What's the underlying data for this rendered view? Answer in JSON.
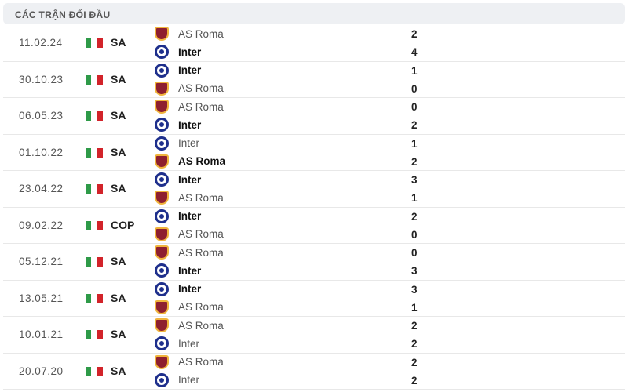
{
  "header": {
    "title": "CÁC TRẬN ĐỐI ĐẦU"
  },
  "colors": {
    "flag": [
      "#2e9a48",
      "#ffffff",
      "#d2232a"
    ]
  },
  "matches": [
    {
      "date": "11.02.24",
      "comp": "SA",
      "home": {
        "name": "AS Roma",
        "logo": "roma-crest-icon",
        "score": "2",
        "win": false
      },
      "away": {
        "name": "Inter",
        "logo": "inter-crest-icon",
        "score": "4",
        "win": true
      }
    },
    {
      "date": "30.10.23",
      "comp": "SA",
      "home": {
        "name": "Inter",
        "logo": "inter-crest-icon",
        "score": "1",
        "win": true
      },
      "away": {
        "name": "AS Roma",
        "logo": "roma-crest-icon",
        "score": "0",
        "win": false
      }
    },
    {
      "date": "06.05.23",
      "comp": "SA",
      "home": {
        "name": "AS Roma",
        "logo": "roma-crest-icon",
        "score": "0",
        "win": false
      },
      "away": {
        "name": "Inter",
        "logo": "inter-crest-icon",
        "score": "2",
        "win": true
      }
    },
    {
      "date": "01.10.22",
      "comp": "SA",
      "home": {
        "name": "Inter",
        "logo": "inter-crest-icon",
        "score": "1",
        "win": false
      },
      "away": {
        "name": "AS Roma",
        "logo": "roma-crest-icon",
        "score": "2",
        "win": true
      }
    },
    {
      "date": "23.04.22",
      "comp": "SA",
      "home": {
        "name": "Inter",
        "logo": "inter-crest-icon",
        "score": "3",
        "win": true
      },
      "away": {
        "name": "AS Roma",
        "logo": "roma-crest-icon",
        "score": "1",
        "win": false
      }
    },
    {
      "date": "09.02.22",
      "comp": "COP",
      "home": {
        "name": "Inter",
        "logo": "inter-crest-icon",
        "score": "2",
        "win": true
      },
      "away": {
        "name": "AS Roma",
        "logo": "roma-crest-icon",
        "score": "0",
        "win": false
      }
    },
    {
      "date": "05.12.21",
      "comp": "SA",
      "home": {
        "name": "AS Roma",
        "logo": "roma-crest-icon",
        "score": "0",
        "win": false
      },
      "away": {
        "name": "Inter",
        "logo": "inter-crest-icon",
        "score": "3",
        "win": true
      }
    },
    {
      "date": "13.05.21",
      "comp": "SA",
      "home": {
        "name": "Inter",
        "logo": "inter-crest-icon",
        "score": "3",
        "win": true
      },
      "away": {
        "name": "AS Roma",
        "logo": "roma-crest-icon",
        "score": "1",
        "win": false
      }
    },
    {
      "date": "10.01.21",
      "comp": "SA",
      "home": {
        "name": "AS Roma",
        "logo": "roma-crest-icon",
        "score": "2",
        "win": false
      },
      "away": {
        "name": "Inter",
        "logo": "inter-crest-icon",
        "score": "2",
        "win": false
      }
    },
    {
      "date": "20.07.20",
      "comp": "SA",
      "home": {
        "name": "AS Roma",
        "logo": "roma-crest-icon",
        "score": "2",
        "win": false
      },
      "away": {
        "name": "Inter",
        "logo": "inter-crest-icon",
        "score": "2",
        "win": false
      }
    }
  ]
}
